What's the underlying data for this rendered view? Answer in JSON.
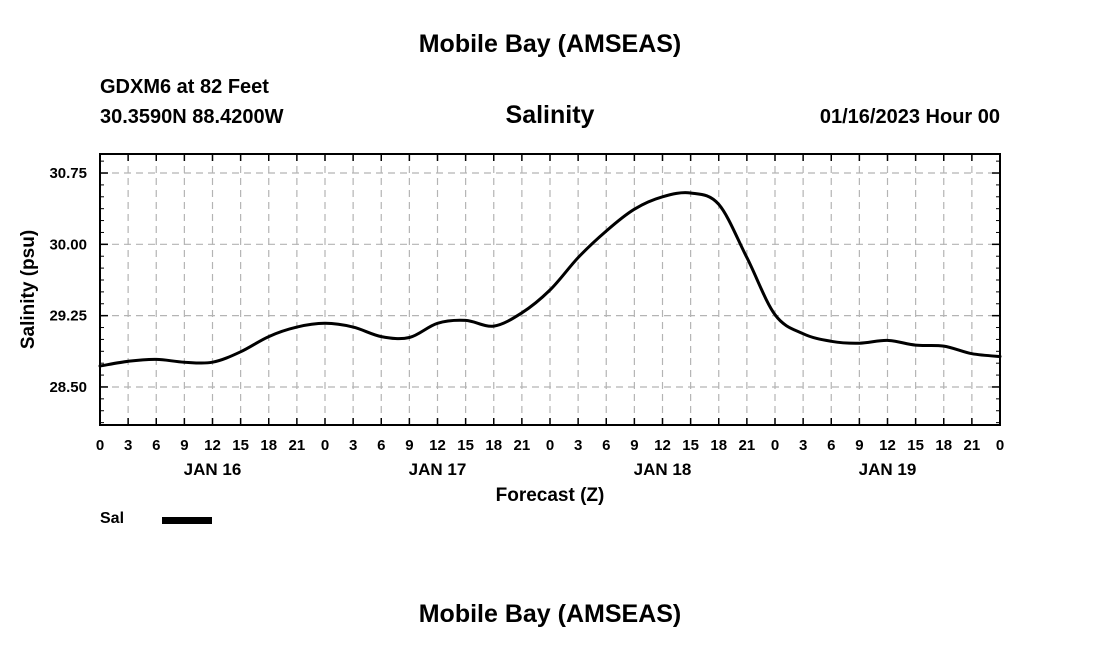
{
  "header": {
    "main_title": "Mobile Bay (AMSEAS)",
    "station": "GDXM6 at 82 Feet",
    "coordinates": "30.3590N  88.4200W",
    "datetime": "01/16/2023 Hour 00",
    "bottom_title": "Mobile Bay (AMSEAS)"
  },
  "legend": {
    "label": "Sal",
    "color": "#000000"
  },
  "chart_data": {
    "type": "line",
    "title": "Salinity",
    "xlabel": "Forecast (Z)",
    "ylabel": "Salinity (psu)",
    "x_unit": "forecast hour",
    "xlim": [
      0,
      96
    ],
    "ylim": [
      28.1,
      30.95
    ],
    "y_ticks": [
      "28.50",
      "29.25",
      "30.00",
      "30.75"
    ],
    "y_tick_values": [
      28.5,
      29.25,
      30.0,
      30.75
    ],
    "x_tick_labels": [
      "0",
      "3",
      "6",
      "9",
      "12",
      "15",
      "18",
      "21",
      "0",
      "3",
      "6",
      "9",
      "12",
      "15",
      "18",
      "21",
      "0",
      "3",
      "6",
      "9",
      "12",
      "15",
      "18",
      "21",
      "0",
      "3",
      "6",
      "9",
      "12",
      "15",
      "18",
      "21",
      "0"
    ],
    "date_labels": [
      {
        "label": "JAN 16",
        "hour": 12
      },
      {
        "label": "JAN 17",
        "hour": 36
      },
      {
        "label": "JAN 18",
        "hour": 60
      },
      {
        "label": "JAN 19",
        "hour": 84
      }
    ],
    "grid": true,
    "series": [
      {
        "name": "Sal",
        "color": "#000000",
        "x": [
          0,
          3,
          6,
          9,
          12,
          15,
          18,
          21,
          24,
          27,
          30,
          33,
          36,
          39,
          42,
          45,
          48,
          51,
          54,
          57,
          60,
          63,
          66,
          69,
          72,
          75,
          78,
          81,
          84,
          87,
          90,
          93,
          96
        ],
        "y": [
          28.72,
          28.77,
          28.79,
          28.76,
          28.76,
          28.87,
          29.03,
          29.13,
          29.17,
          29.13,
          29.03,
          29.02,
          29.17,
          29.2,
          29.14,
          29.28,
          29.52,
          29.86,
          30.14,
          30.37,
          30.5,
          30.54,
          30.42,
          29.86,
          29.26,
          29.06,
          28.98,
          28.96,
          28.99,
          28.94,
          28.93,
          28.85,
          28.82
        ]
      }
    ]
  }
}
